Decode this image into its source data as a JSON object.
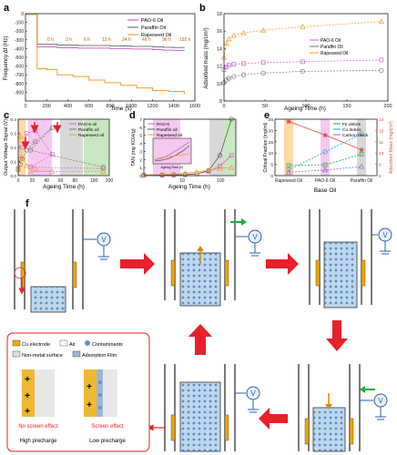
{
  "panels": {
    "a": {
      "letter": "a",
      "ylabel": "Frequency Δf (Hz)",
      "xlabel": "Time (s)",
      "legend": [
        "PAO-6 Oil",
        "Paraffin Oil",
        "Rapeseed Oil"
      ],
      "step_labels": [
        "0 h",
        "3 h",
        "6 h",
        "12 h",
        "24 h",
        "48 h",
        "96 h",
        "192 h"
      ]
    },
    "b": {
      "letter": "b",
      "ylabel": "Adsorbed mass (mg/cm²)",
      "xlabel": "Ageing Time (h)",
      "legend": [
        "PAO-6 Oil",
        "Paraffin Oil",
        "Rapeseed Oil"
      ]
    },
    "c": {
      "letter": "c",
      "ylabel": "Output Voltage Signal (V)",
      "xlabel": "Ageing Time (h)",
      "legend": [
        "PAO-6 oil",
        "Paraffin oil",
        "Rapeseed oil"
      ]
    },
    "d": {
      "letter": "d",
      "ylabel": "TAN (mg KOH/g)",
      "xlabel": "Ageing Time (h)",
      "legend": [
        "PAO-6",
        "Paraffin oil",
        "Rapeseed oil"
      ],
      "inset_xlabel": "Ageing Time (h)"
    },
    "e": {
      "letter": "e",
      "ylabel": "Critical Fraction (mg/ml)",
      "ylabel_right": "Adsorbed Mass (mg/cm²)",
      "xlabel": "Base Oil",
      "legend": [
        "Fe debris",
        "Cu debris",
        "Carbon black"
      ]
    },
    "f": {
      "letter": "f",
      "v_symbol": "V"
    }
  },
  "legend_box": {
    "cu_electrode": "Cu electrode",
    "air": "Air",
    "contaminants": "Contaminants",
    "non_metal": "Non-metal surface",
    "adsorption_film": "Adsorption Film",
    "no_screen": "No screen effect",
    "screen": "Screen effect",
    "high_precharge": "High precharge",
    "low_precharge": "Low precharge",
    "plus": "+"
  },
  "chart_data": [
    {
      "panel": "a",
      "type": "line",
      "xlabel": "Time (s)",
      "ylabel": "Frequency Δf (Hz)",
      "xlim": [
        0,
        1600
      ],
      "ylim": [
        -1000,
        0
      ],
      "xticks": [
        0,
        200,
        400,
        600,
        800,
        1000,
        1200,
        1400,
        1600
      ],
      "yticks": [
        -900,
        -800,
        -700,
        -600,
        -500,
        -400,
        -300,
        -200,
        -100,
        0
      ],
      "series": [
        {
          "name": "PAO-6 Oil",
          "color": "#cc66cc",
          "x": [
            0,
            100,
            110,
            300,
            500,
            800,
            1000,
            1200,
            1300,
            1400,
            1500
          ],
          "y": [
            -10,
            -10,
            -380,
            -390,
            -395,
            -400,
            -405,
            -412,
            -418,
            -420,
            -425
          ]
        },
        {
          "name": "Paraffin Oil",
          "color": "#777777",
          "x": [
            0,
            100,
            110,
            300,
            500,
            800,
            1000,
            1200,
            1300,
            1400,
            1500
          ],
          "y": [
            -10,
            -10,
            -350,
            -360,
            -365,
            -370,
            -375,
            -380,
            -385,
            -388,
            -390
          ]
        },
        {
          "name": "Rapeseed Oil",
          "color": "#f0a030",
          "x": [
            0,
            100,
            110,
            200,
            300,
            450,
            600,
            750,
            900,
            1050,
            1200,
            1350,
            1500
          ],
          "y": [
            -10,
            -10,
            -630,
            -640,
            -700,
            -720,
            -760,
            -790,
            -820,
            -850,
            -880,
            -890,
            -920
          ]
        }
      ]
    },
    {
      "panel": "b",
      "type": "line",
      "xlabel": "Ageing Time (h)",
      "ylabel": "Adsorbed mass (mg/cm²)",
      "xlim": [
        0,
        200
      ],
      "ylim": [
        8,
        18
      ],
      "xticks": [
        0,
        50,
        100,
        150,
        200
      ],
      "yticks": [
        8,
        10,
        12,
        14,
        16,
        18
      ],
      "series": [
        {
          "name": "PAO-6 Oil",
          "color": "#cc66cc",
          "x": [
            0,
            3,
            6,
            12,
            24,
            48,
            96,
            192
          ],
          "y": [
            11.6,
            11.9,
            12.1,
            12.2,
            12.3,
            12.4,
            12.5,
            12.7
          ]
        },
        {
          "name": "Paraffin Oil",
          "color": "#777777",
          "x": [
            0,
            3,
            6,
            12,
            24,
            48,
            96,
            192
          ],
          "y": [
            10.1,
            10.4,
            10.6,
            10.8,
            11.0,
            11.2,
            11.4,
            11.5
          ]
        },
        {
          "name": "Rapeseed Oil",
          "color": "#f0a030",
          "x": [
            0,
            3,
            6,
            12,
            24,
            48,
            96,
            192
          ],
          "y": [
            13.0,
            14.6,
            15.1,
            15.5,
            15.8,
            16.1,
            16.5,
            17.1
          ]
        }
      ]
    },
    {
      "panel": "c",
      "type": "line",
      "xlabel": "Ageing Time (h)",
      "ylabel": "Output Voltage Signal (V)",
      "xlim": [
        0,
        200
      ],
      "ylim": [
        0,
        0.4
      ],
      "xticks": [
        0,
        20,
        40,
        60,
        80,
        180,
        200
      ],
      "yticks": [
        0.0,
        0.1,
        0.2,
        0.3,
        0.4
      ],
      "series": [
        {
          "name": "PAO-6 oil",
          "color": "#cc66cc",
          "x": [
            0,
            3,
            6,
            12,
            24,
            48,
            96,
            192
          ],
          "y": [
            0.05,
            0.12,
            0.2,
            0.3,
            0.32,
            0.15,
            0.06,
            0.05
          ]
        },
        {
          "name": "Paraffin oil",
          "color": "#777777",
          "x": [
            0,
            3,
            6,
            12,
            24,
            48,
            96,
            192
          ],
          "y": [
            0.04,
            0.08,
            0.12,
            0.18,
            0.24,
            0.34,
            0.18,
            0.06
          ]
        },
        {
          "name": "Rapeseed oil",
          "color": "#f0a030",
          "x": [
            0,
            3,
            6,
            12,
            24,
            48,
            96,
            192
          ],
          "y": [
            0.05,
            0.28,
            0.12,
            0.07,
            0.05,
            0.03,
            0.03,
            0.03
          ]
        }
      ]
    },
    {
      "panel": "d",
      "type": "line",
      "xlabel": "Ageing Time (h)",
      "ylabel": "TAN (mg KOH/g)",
      "xscale": "log",
      "xticks": [
        10,
        100
      ],
      "yticks": [
        0,
        1,
        2,
        3,
        4,
        5,
        6,
        7
      ],
      "ylim": [
        0,
        7
      ],
      "series": [
        {
          "name": "PAO-6",
          "color": "#cc66cc",
          "x": [
            1,
            3,
            6,
            12,
            24,
            48,
            96,
            192
          ],
          "y": [
            0.05,
            0.08,
            0.1,
            0.15,
            0.25,
            0.5,
            1.2,
            2.5
          ]
        },
        {
          "name": "Paraffin oil",
          "color": "#555555",
          "x": [
            1,
            3,
            6,
            12,
            24,
            48,
            96,
            192
          ],
          "y": [
            0.05,
            0.06,
            0.08,
            0.1,
            0.2,
            0.6,
            2.5,
            7.0
          ]
        },
        {
          "name": "Rapeseed oil",
          "color": "#f0a030",
          "x": [
            1,
            3,
            6,
            12,
            24,
            48,
            96,
            192
          ],
          "y": [
            0.1,
            0.15,
            0.2,
            0.3,
            0.45,
            0.7,
            0.9,
            1.0
          ]
        }
      ]
    },
    {
      "panel": "e",
      "type": "line",
      "xlabel": "Base Oil",
      "ylabel": "Critical Fraction (mg/ml)",
      "ylabel_right": "Adsorbed Mass (mg/cm²)",
      "categories": [
        "Rapeseed Oil",
        "PAO-6 Oil",
        "Paraffin Oil"
      ],
      "yticks": [
        0,
        5,
        10,
        15,
        20,
        25
      ],
      "ylim": [
        0,
        25
      ],
      "yticks_right": [
        8,
        9,
        10,
        11,
        12,
        13
      ],
      "ylim_right": [
        8,
        13
      ],
      "series": [
        {
          "name": "Fe debris",
          "color": "#22aa44",
          "values": [
            4.5,
            4.8,
            9.5
          ]
        },
        {
          "name": "Cu debris",
          "color": "#2a9fd6",
          "values": [
            2.5,
            10.5,
            18.5
          ]
        },
        {
          "name": "Carbon black",
          "color": "#9966cc",
          "values": [
            1.5,
            2.5,
            4.0
          ]
        },
        {
          "name": "Adsorbed Mass",
          "axis": "right",
          "color": "#e04a4a",
          "values": [
            12.8,
            11.6,
            10.3
          ]
        }
      ]
    }
  ]
}
